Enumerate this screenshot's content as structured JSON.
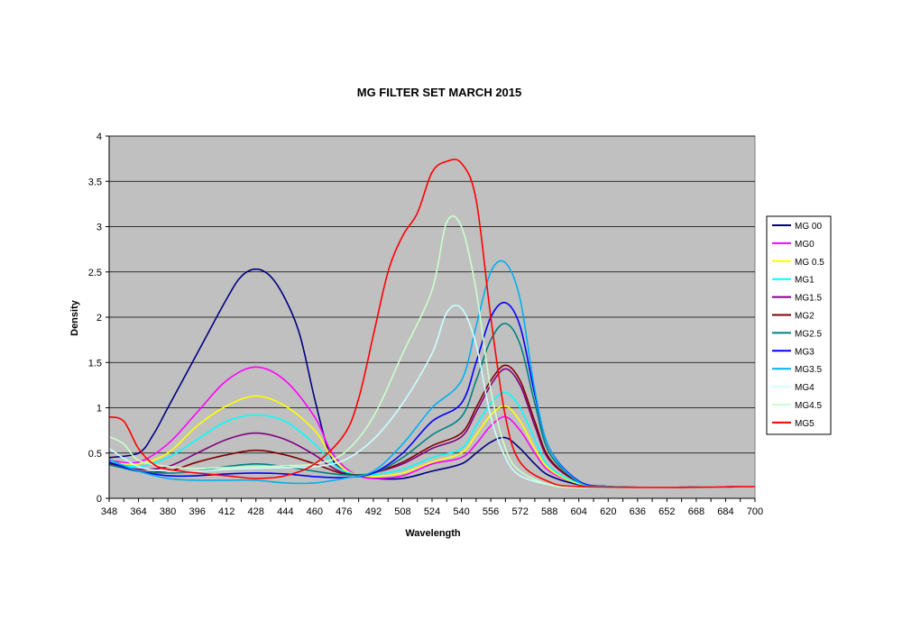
{
  "chart_data": {
    "type": "line",
    "title": "MG FILTER SET MARCH 2015",
    "xlabel": "Wavelength",
    "ylabel": "Density",
    "xlim": [
      348,
      700
    ],
    "ylim": [
      0,
      4
    ],
    "grid": true,
    "legend": "right",
    "plot_background": "#c0c0c0",
    "x_ticks": [
      348,
      364,
      380,
      396,
      412,
      428,
      444,
      460,
      476,
      492,
      508,
      524,
      540,
      556,
      572,
      588,
      604,
      620,
      636,
      652,
      668,
      684,
      700
    ],
    "y_ticks": [
      0,
      0.5,
      1,
      1.5,
      2,
      2.5,
      3,
      3.5,
      4
    ],
    "y_tick_labels": [
      "0",
      "0.5",
      "1",
      "1.5",
      "2",
      "2.5",
      "3",
      "3.5",
      "4"
    ],
    "series": [
      {
        "name": "MG 00",
        "color": "#000080",
        "points": [
          [
            348,
            0.45
          ],
          [
            364,
            0.5
          ],
          [
            372,
            0.7
          ],
          [
            380,
            1.0
          ],
          [
            396,
            1.6
          ],
          [
            412,
            2.2
          ],
          [
            420,
            2.45
          ],
          [
            428,
            2.53
          ],
          [
            436,
            2.45
          ],
          [
            444,
            2.2
          ],
          [
            452,
            1.8
          ],
          [
            460,
            1.1
          ],
          [
            468,
            0.5
          ],
          [
            476,
            0.3
          ],
          [
            484,
            0.25
          ],
          [
            492,
            0.22
          ],
          [
            508,
            0.22
          ],
          [
            524,
            0.3
          ],
          [
            540,
            0.38
          ],
          [
            548,
            0.5
          ],
          [
            556,
            0.62
          ],
          [
            564,
            0.67
          ],
          [
            572,
            0.55
          ],
          [
            580,
            0.38
          ],
          [
            588,
            0.25
          ],
          [
            604,
            0.15
          ],
          [
            620,
            0.12
          ],
          [
            652,
            0.12
          ],
          [
            700,
            0.13
          ]
        ]
      },
      {
        "name": "MG0",
        "color": "#ff00ff",
        "points": [
          [
            348,
            0.42
          ],
          [
            364,
            0.4
          ],
          [
            380,
            0.6
          ],
          [
            396,
            0.95
          ],
          [
            412,
            1.3
          ],
          [
            428,
            1.45
          ],
          [
            444,
            1.3
          ],
          [
            460,
            0.9
          ],
          [
            468,
            0.55
          ],
          [
            476,
            0.35
          ],
          [
            484,
            0.25
          ],
          [
            492,
            0.22
          ],
          [
            508,
            0.25
          ],
          [
            524,
            0.38
          ],
          [
            540,
            0.45
          ],
          [
            548,
            0.6
          ],
          [
            556,
            0.8
          ],
          [
            564,
            0.9
          ],
          [
            572,
            0.75
          ],
          [
            580,
            0.5
          ],
          [
            588,
            0.3
          ],
          [
            604,
            0.16
          ],
          [
            620,
            0.13
          ],
          [
            652,
            0.12
          ],
          [
            700,
            0.13
          ]
        ]
      },
      {
        "name": "MG 0.5",
        "color": "#ffff00",
        "points": [
          [
            348,
            0.4
          ],
          [
            364,
            0.38
          ],
          [
            380,
            0.5
          ],
          [
            396,
            0.8
          ],
          [
            412,
            1.02
          ],
          [
            428,
            1.13
          ],
          [
            444,
            1.02
          ],
          [
            460,
            0.75
          ],
          [
            468,
            0.5
          ],
          [
            476,
            0.32
          ],
          [
            484,
            0.26
          ],
          [
            492,
            0.24
          ],
          [
            508,
            0.28
          ],
          [
            524,
            0.4
          ],
          [
            540,
            0.5
          ],
          [
            548,
            0.7
          ],
          [
            556,
            0.92
          ],
          [
            564,
            1.02
          ],
          [
            572,
            0.85
          ],
          [
            580,
            0.55
          ],
          [
            588,
            0.32
          ],
          [
            604,
            0.16
          ],
          [
            620,
            0.13
          ],
          [
            652,
            0.12
          ],
          [
            700,
            0.13
          ]
        ]
      },
      {
        "name": "MG1",
        "color": "#00ffff",
        "points": [
          [
            348,
            0.4
          ],
          [
            364,
            0.35
          ],
          [
            380,
            0.45
          ],
          [
            396,
            0.65
          ],
          [
            412,
            0.85
          ],
          [
            428,
            0.92
          ],
          [
            444,
            0.85
          ],
          [
            460,
            0.6
          ],
          [
            468,
            0.42
          ],
          [
            476,
            0.3
          ],
          [
            484,
            0.26
          ],
          [
            492,
            0.26
          ],
          [
            508,
            0.32
          ],
          [
            524,
            0.45
          ],
          [
            540,
            0.55
          ],
          [
            548,
            0.8
          ],
          [
            556,
            1.05
          ],
          [
            564,
            1.17
          ],
          [
            572,
            1.0
          ],
          [
            580,
            0.65
          ],
          [
            588,
            0.35
          ],
          [
            604,
            0.17
          ],
          [
            620,
            0.13
          ],
          [
            652,
            0.12
          ],
          [
            700,
            0.13
          ]
        ]
      },
      {
        "name": "MG1.5",
        "color": "#800080",
        "points": [
          [
            348,
            0.38
          ],
          [
            364,
            0.32
          ],
          [
            380,
            0.35
          ],
          [
            396,
            0.5
          ],
          [
            412,
            0.65
          ],
          [
            428,
            0.72
          ],
          [
            444,
            0.65
          ],
          [
            460,
            0.48
          ],
          [
            468,
            0.36
          ],
          [
            476,
            0.28
          ],
          [
            484,
            0.26
          ],
          [
            492,
            0.28
          ],
          [
            508,
            0.38
          ],
          [
            524,
            0.55
          ],
          [
            540,
            0.68
          ],
          [
            548,
            0.95
          ],
          [
            556,
            1.25
          ],
          [
            564,
            1.43
          ],
          [
            572,
            1.25
          ],
          [
            580,
            0.8
          ],
          [
            588,
            0.42
          ],
          [
            604,
            0.18
          ],
          [
            620,
            0.13
          ],
          [
            652,
            0.12
          ],
          [
            700,
            0.13
          ]
        ]
      },
      {
        "name": "MG2",
        "color": "#800000",
        "points": [
          [
            348,
            0.38
          ],
          [
            364,
            0.3
          ],
          [
            380,
            0.3
          ],
          [
            396,
            0.4
          ],
          [
            412,
            0.48
          ],
          [
            428,
            0.53
          ],
          [
            444,
            0.48
          ],
          [
            460,
            0.38
          ],
          [
            468,
            0.32
          ],
          [
            476,
            0.27
          ],
          [
            484,
            0.26
          ],
          [
            492,
            0.28
          ],
          [
            508,
            0.4
          ],
          [
            524,
            0.58
          ],
          [
            540,
            0.72
          ],
          [
            548,
            1.0
          ],
          [
            556,
            1.3
          ],
          [
            564,
            1.47
          ],
          [
            572,
            1.3
          ],
          [
            580,
            0.85
          ],
          [
            588,
            0.44
          ],
          [
            604,
            0.18
          ],
          [
            620,
            0.13
          ],
          [
            652,
            0.12
          ],
          [
            700,
            0.13
          ]
        ]
      },
      {
        "name": "MG2.5",
        "color": "#008080",
        "points": [
          [
            348,
            0.37
          ],
          [
            364,
            0.3
          ],
          [
            380,
            0.28
          ],
          [
            396,
            0.3
          ],
          [
            412,
            0.35
          ],
          [
            428,
            0.38
          ],
          [
            444,
            0.35
          ],
          [
            460,
            0.3
          ],
          [
            476,
            0.26
          ],
          [
            492,
            0.28
          ],
          [
            508,
            0.45
          ],
          [
            524,
            0.7
          ],
          [
            540,
            0.9
          ],
          [
            548,
            1.3
          ],
          [
            556,
            1.75
          ],
          [
            564,
            1.93
          ],
          [
            572,
            1.7
          ],
          [
            580,
            1.05
          ],
          [
            588,
            0.5
          ],
          [
            604,
            0.19
          ],
          [
            620,
            0.13
          ],
          [
            652,
            0.12
          ],
          [
            700,
            0.13
          ]
        ]
      },
      {
        "name": "MG3",
        "color": "#0000ff",
        "points": [
          [
            348,
            0.4
          ],
          [
            364,
            0.3
          ],
          [
            380,
            0.25
          ],
          [
            396,
            0.25
          ],
          [
            412,
            0.27
          ],
          [
            428,
            0.28
          ],
          [
            444,
            0.27
          ],
          [
            460,
            0.24
          ],
          [
            476,
            0.23
          ],
          [
            492,
            0.28
          ],
          [
            508,
            0.5
          ],
          [
            524,
            0.85
          ],
          [
            540,
            1.05
          ],
          [
            548,
            1.5
          ],
          [
            556,
            2.0
          ],
          [
            564,
            2.16
          ],
          [
            572,
            1.9
          ],
          [
            580,
            1.15
          ],
          [
            588,
            0.55
          ],
          [
            604,
            0.19
          ],
          [
            620,
            0.13
          ],
          [
            652,
            0.12
          ],
          [
            700,
            0.13
          ]
        ]
      },
      {
        "name": "MG3.5",
        "color": "#00b0f0",
        "points": [
          [
            348,
            0.43
          ],
          [
            364,
            0.3
          ],
          [
            380,
            0.22
          ],
          [
            396,
            0.2
          ],
          [
            412,
            0.2
          ],
          [
            428,
            0.2
          ],
          [
            444,
            0.17
          ],
          [
            460,
            0.17
          ],
          [
            476,
            0.22
          ],
          [
            492,
            0.3
          ],
          [
            508,
            0.6
          ],
          [
            524,
            1.0
          ],
          [
            540,
            1.3
          ],
          [
            548,
            1.9
          ],
          [
            556,
            2.5
          ],
          [
            564,
            2.6
          ],
          [
            572,
            2.2
          ],
          [
            580,
            1.2
          ],
          [
            588,
            0.55
          ],
          [
            604,
            0.18
          ],
          [
            620,
            0.13
          ],
          [
            652,
            0.12
          ],
          [
            700,
            0.13
          ]
        ]
      },
      {
        "name": "MG4",
        "color": "#ccffff",
        "points": [
          [
            348,
            0.55
          ],
          [
            364,
            0.35
          ],
          [
            380,
            0.3
          ],
          [
            396,
            0.3
          ],
          [
            412,
            0.32
          ],
          [
            428,
            0.33
          ],
          [
            444,
            0.34
          ],
          [
            460,
            0.35
          ],
          [
            476,
            0.42
          ],
          [
            492,
            0.65
          ],
          [
            508,
            1.05
          ],
          [
            524,
            1.6
          ],
          [
            532,
            2.05
          ],
          [
            540,
            2.1
          ],
          [
            548,
            1.7
          ],
          [
            556,
            0.9
          ],
          [
            564,
            0.45
          ],
          [
            572,
            0.25
          ],
          [
            588,
            0.15
          ],
          [
            604,
            0.12
          ],
          [
            652,
            0.12
          ],
          [
            700,
            0.13
          ]
        ]
      },
      {
        "name": "MG4.5",
        "color": "#ccffcc",
        "points": [
          [
            348,
            0.68
          ],
          [
            356,
            0.6
          ],
          [
            364,
            0.42
          ],
          [
            380,
            0.35
          ],
          [
            396,
            0.33
          ],
          [
            412,
            0.34
          ],
          [
            428,
            0.35
          ],
          [
            444,
            0.36
          ],
          [
            460,
            0.38
          ],
          [
            476,
            0.5
          ],
          [
            492,
            0.9
          ],
          [
            508,
            1.6
          ],
          [
            524,
            2.3
          ],
          [
            532,
            3.05
          ],
          [
            540,
            3.0
          ],
          [
            548,
            2.3
          ],
          [
            556,
            1.2
          ],
          [
            564,
            0.55
          ],
          [
            572,
            0.3
          ],
          [
            588,
            0.15
          ],
          [
            604,
            0.12
          ],
          [
            652,
            0.12
          ],
          [
            700,
            0.13
          ]
        ]
      },
      {
        "name": "MG5",
        "color": "#ff0000",
        "points": [
          [
            348,
            0.9
          ],
          [
            356,
            0.85
          ],
          [
            364,
            0.55
          ],
          [
            372,
            0.38
          ],
          [
            380,
            0.32
          ],
          [
            396,
            0.28
          ],
          [
            412,
            0.25
          ],
          [
            428,
            0.22
          ],
          [
            444,
            0.25
          ],
          [
            460,
            0.38
          ],
          [
            476,
            0.7
          ],
          [
            484,
            1.1
          ],
          [
            492,
            1.8
          ],
          [
            500,
            2.5
          ],
          [
            508,
            2.9
          ],
          [
            516,
            3.15
          ],
          [
            524,
            3.6
          ],
          [
            532,
            3.72
          ],
          [
            540,
            3.7
          ],
          [
            548,
            3.3
          ],
          [
            556,
            2.0
          ],
          [
            564,
            0.9
          ],
          [
            572,
            0.4
          ],
          [
            588,
            0.18
          ],
          [
            604,
            0.13
          ],
          [
            652,
            0.12
          ],
          [
            700,
            0.13
          ]
        ]
      }
    ]
  }
}
